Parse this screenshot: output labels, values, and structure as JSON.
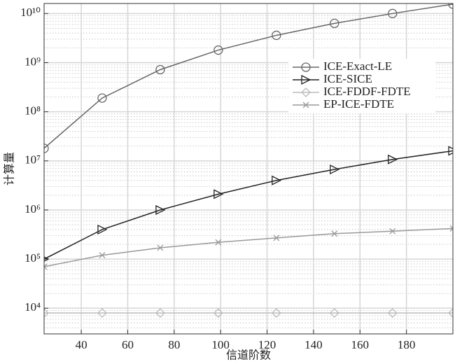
{
  "chart_data": {
    "type": "line",
    "xlabel": "信道阶数",
    "ylabel": "计算量",
    "x": [
      24,
      49,
      74,
      99,
      124,
      149,
      174,
      200
    ],
    "series": [
      {
        "name": "ICE-Exact-LE",
        "color": "#666666",
        "marker": "circle",
        "values": [
          18000000,
          190000000,
          720000000,
          1800000000,
          3600000000,
          6300000000,
          10000000000,
          15500000000
        ]
      },
      {
        "name": "ICE-SICE",
        "color": "#222222",
        "marker": "triangle-right",
        "values": [
          100000,
          400000,
          1000000,
          2100000,
          4000000,
          6700000,
          10700000,
          16000000
        ]
      },
      {
        "name": "ICE-FDDF-FDTE",
        "color": "#bbbbbb",
        "marker": "diamond",
        "values": [
          8000,
          8000,
          8000,
          8000,
          8000,
          8000,
          8000,
          8000
        ]
      },
      {
        "name": "EP-ICE-FDTE",
        "color": "#999999",
        "marker": "x",
        "values": [
          70000,
          120000,
          170000,
          220000,
          270000,
          330000,
          370000,
          420000
        ]
      }
    ],
    "xlim": [
      24,
      200
    ],
    "xticks": [
      40,
      60,
      80,
      100,
      120,
      140,
      160,
      180
    ],
    "ylim": [
      3000,
      16000000000
    ],
    "ylog": true,
    "yticks": [
      {
        "value": 10000,
        "label": "10⁴"
      },
      {
        "value": 100000,
        "label": "10⁵"
      },
      {
        "value": 1000000,
        "label": "10⁶"
      },
      {
        "value": 10000000,
        "label": "10⁷"
      },
      {
        "value": 100000000,
        "label": "10⁸"
      },
      {
        "value": 1000000000,
        "label": "10⁹"
      },
      {
        "value": 10000000000,
        "label": "10¹⁰"
      }
    ],
    "grid": true,
    "minor_grid": true,
    "legend": "upper right"
  }
}
